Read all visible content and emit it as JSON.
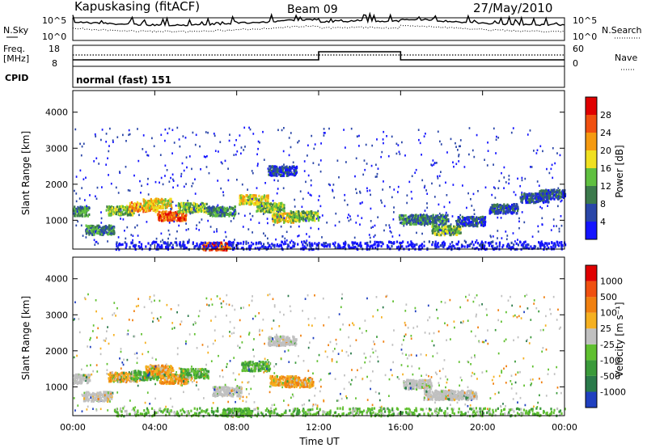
{
  "header": {
    "station": "Kapuskasing (fitACF)",
    "beam": "Beam 09",
    "date": "27/May/2010"
  },
  "status_panels": {
    "nsky_label": "N.Sky",
    "nsky_ticks": [
      "10^5",
      "10^0"
    ],
    "nsearch_label": "N.Search",
    "nsearch_ticks": [
      "10^5",
      "10^0"
    ],
    "freq_label": "Freq.",
    "freq_unit": "[MHz]",
    "freq_ticks": [
      "18",
      "8"
    ],
    "nave_label": "Nave",
    "nave_ticks": [
      "60",
      "0"
    ],
    "cpid_label": "CPID",
    "cpid_value": "normal (fast) 151"
  },
  "chart_data": [
    {
      "type": "heatmap",
      "name": "power",
      "ylabel": "Slant Range [km]",
      "colorbar_label": "Power [dB]",
      "colorbar_ticks": [
        "4",
        "8",
        "12",
        "16",
        "20",
        "24",
        "28"
      ],
      "colorbar_colors": [
        "#1414ff",
        "#2a46a8",
        "#3c7a4c",
        "#60c040",
        "#f0e020",
        "#f59a10",
        "#f05010",
        "#e00000"
      ],
      "ylim": [
        200,
        4600
      ],
      "yticks": [
        "1000",
        "2000",
        "3000",
        "4000"
      ],
      "xlim": [
        0,
        24
      ],
      "blobs": [
        {
          "t": 0.1,
          "r": 1280,
          "level": 2
        },
        {
          "t": 1.3,
          "r": 760,
          "level": 2
        },
        {
          "t": 2.3,
          "r": 1300,
          "level": 3
        },
        {
          "t": 3.4,
          "r": 1400,
          "level": 5
        },
        {
          "t": 4.1,
          "r": 1500,
          "level": 4
        },
        {
          "t": 4.8,
          "r": 1150,
          "level": 6
        },
        {
          "t": 5.8,
          "r": 1380,
          "level": 3
        },
        {
          "t": 7.2,
          "r": 1280,
          "level": 2
        },
        {
          "t": 8.8,
          "r": 1600,
          "level": 4
        },
        {
          "t": 9.6,
          "r": 1380,
          "level": 3
        },
        {
          "t": 10.4,
          "r": 1100,
          "level": 4
        },
        {
          "t": 11.3,
          "r": 1150,
          "level": 3
        },
        {
          "t": 10.2,
          "r": 2400,
          "level": 1
        },
        {
          "t": 7.0,
          "r": 280,
          "level": 6
        },
        {
          "t": 16.6,
          "r": 1050,
          "level": 2
        },
        {
          "t": 17.6,
          "r": 1050,
          "level": 2
        },
        {
          "t": 18.2,
          "r": 750,
          "level": 3
        },
        {
          "t": 19.4,
          "r": 1000,
          "level": 1
        },
        {
          "t": 21.0,
          "r": 1350,
          "level": 1
        },
        {
          "t": 22.5,
          "r": 1650,
          "level": 1
        },
        {
          "t": 23.4,
          "r": 1750,
          "level": 1
        }
      ]
    },
    {
      "type": "heatmap",
      "name": "velocity",
      "ylabel": "Slant Range [km]",
      "colorbar_label": "Velocity [m s⁻¹]",
      "colorbar_ticks": [
        "1000",
        "500",
        "100",
        "25",
        "-25",
        "-100",
        "-500",
        "-1000"
      ],
      "colorbar_colors": [
        "#2040c0",
        "#2a7a4a",
        "#3a9a3a",
        "#60c030",
        "#c0c0c0",
        "#f5b020",
        "#f08010",
        "#f05010",
        "#e00000"
      ],
      "ylim": [
        200,
        4600
      ],
      "yticks": [
        "1000",
        "2000",
        "3000",
        "4000"
      ],
      "xlim": [
        0,
        24
      ],
      "xticks": [
        "00:00",
        "04:00",
        "08:00",
        "12:00",
        "16:00",
        "20:00",
        "00:00"
      ],
      "xlabel": "Time UT",
      "blobs": [
        {
          "t": 0.1,
          "r": 1250,
          "cat": "gray"
        },
        {
          "t": 1.2,
          "r": 760,
          "cat": "gray"
        },
        {
          "t": 2.4,
          "r": 1300,
          "cat": "orange"
        },
        {
          "t": 3.5,
          "r": 1350,
          "cat": "green"
        },
        {
          "t": 4.2,
          "r": 1500,
          "cat": "orange"
        },
        {
          "t": 4.9,
          "r": 1250,
          "cat": "orange"
        },
        {
          "t": 5.9,
          "r": 1400,
          "cat": "green"
        },
        {
          "t": 8.9,
          "r": 1600,
          "cat": "green"
        },
        {
          "t": 10.3,
          "r": 1200,
          "cat": "orange"
        },
        {
          "t": 11.0,
          "r": 1150,
          "cat": "orange"
        },
        {
          "t": 7.5,
          "r": 900,
          "cat": "gray"
        },
        {
          "t": 10.2,
          "r": 2300,
          "cat": "gray"
        },
        {
          "t": 16.8,
          "r": 1100,
          "cat": "gray"
        },
        {
          "t": 17.8,
          "r": 800,
          "cat": "gray"
        },
        {
          "t": 19.0,
          "r": 800,
          "cat": "gray"
        },
        {
          "t": 8.0,
          "r": 300,
          "cat": "green"
        }
      ]
    }
  ]
}
